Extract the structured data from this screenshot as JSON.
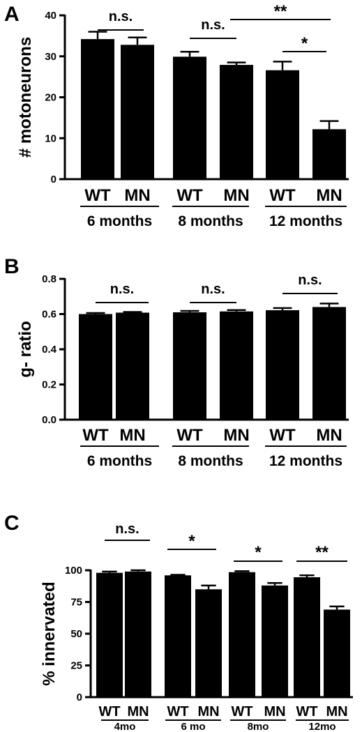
{
  "chart_data": [
    {
      "panel": "A",
      "type": "bar",
      "ylabel": "# motoneurons",
      "ylim": [
        0,
        40
      ],
      "yticks": [
        "0",
        "10",
        "20",
        "30",
        "40"
      ],
      "categories": [
        "WT",
        "MN",
        "WT",
        "MN",
        "WT",
        "MN"
      ],
      "groups": [
        "6 months",
        "8 months",
        "12 months"
      ],
      "values": [
        34.2,
        32.8,
        29.9,
        27.9,
        26.6,
        12.2
      ],
      "errors": [
        1.8,
        1.8,
        1.2,
        0.6,
        2.1,
        2.0
      ],
      "significance": [
        {
          "label": "n.s."
        },
        {
          "label": "n.s."
        },
        {
          "label": "**"
        },
        {
          "label": "*"
        }
      ]
    },
    {
      "panel": "B",
      "type": "bar",
      "ylabel": "g- ratio",
      "ylim": [
        0,
        0.8
      ],
      "yticks": [
        "0.0",
        "0.2",
        "0.4",
        "0.6",
        "0.8"
      ],
      "categories": [
        "WT",
        "MN",
        "WT",
        "MN",
        "WT",
        "MN"
      ],
      "groups": [
        "6 months",
        "8 months",
        "12 months"
      ],
      "values": [
        0.6,
        0.608,
        0.61,
        0.615,
        0.622,
        0.64
      ],
      "errors": [
        0.006,
        0.004,
        0.008,
        0.008,
        0.012,
        0.02
      ],
      "significance": [
        {
          "label": "n.s."
        },
        {
          "label": "n.s."
        },
        {
          "label": "n.s."
        }
      ]
    },
    {
      "panel": "C",
      "type": "bar",
      "ylabel": "% innervated",
      "ylim": [
        0,
        100
      ],
      "yticks": [
        "0",
        "25",
        "50",
        "75",
        "100"
      ],
      "categories": [
        "WT",
        "MN",
        "WT",
        "MN",
        "WT",
        "MN",
        "WT",
        "MN"
      ],
      "groups": [
        "4mo",
        "6 mo",
        "8mo",
        "12mo"
      ],
      "values": [
        98.0,
        99.0,
        96.0,
        85.0,
        98.5,
        88.0,
        94.5,
        69.0
      ],
      "errors": [
        1.0,
        1.0,
        0.4,
        3.0,
        0.8,
        2.0,
        1.5,
        2.5
      ],
      "significance": [
        {
          "label": "n.s."
        },
        {
          "label": "*"
        },
        {
          "label": "*"
        },
        {
          "label": "**"
        }
      ]
    }
  ]
}
